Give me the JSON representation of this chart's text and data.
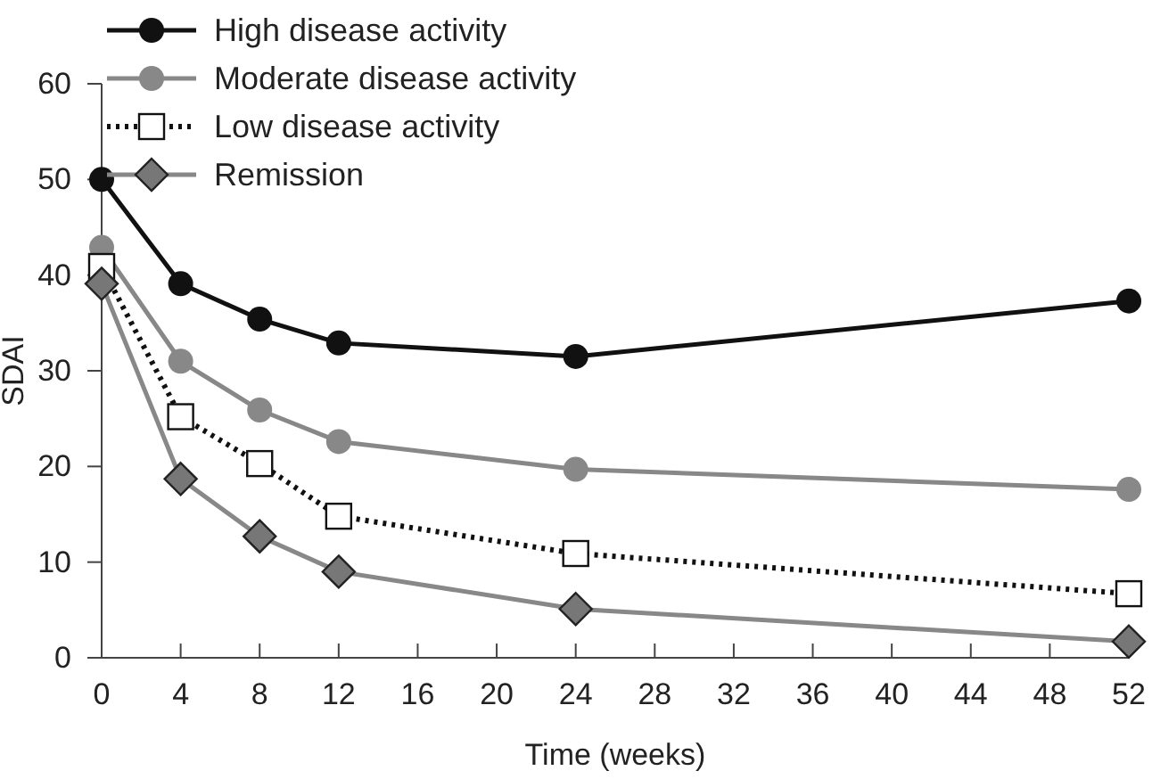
{
  "chart_data": {
    "type": "line",
    "xlabel": "Time (weeks)",
    "ylabel": "SDAI",
    "x": [
      0,
      4,
      8,
      12,
      24,
      52
    ],
    "xlim": [
      0,
      52
    ],
    "xticks": [
      0,
      4,
      8,
      12,
      16,
      20,
      24,
      28,
      32,
      36,
      40,
      44,
      48,
      52
    ],
    "ylim": [
      0,
      60
    ],
    "yticks": [
      0,
      10,
      20,
      30,
      40,
      50,
      60
    ],
    "grid": false,
    "legend": "top left",
    "series": [
      {
        "name": "High disease activity",
        "color": "#111111",
        "marker": "circle",
        "line_style": "solid",
        "values": [
          50,
          39.1,
          35.4,
          32.9,
          31.5,
          37.3
        ]
      },
      {
        "name": "Moderate disease activity",
        "color": "#888888",
        "marker": "circle",
        "line_style": "solid",
        "values": [
          42.9,
          31.0,
          25.9,
          22.6,
          19.7,
          17.6
        ]
      },
      {
        "name": "Low disease activity",
        "color": "#111111",
        "marker": "square",
        "line_style": "dotted",
        "values": [
          40.9,
          25.2,
          20.3,
          14.8,
          10.9,
          6.7
        ]
      },
      {
        "name": "Remission",
        "color": "#888888",
        "marker": "diamond",
        "line_style": "solid",
        "values": [
          39.1,
          18.7,
          12.7,
          9.0,
          5.1,
          1.7
        ]
      }
    ]
  }
}
